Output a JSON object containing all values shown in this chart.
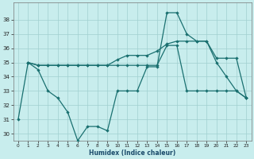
{
  "xlabel": "Humidex (Indice chaleur)",
  "bg_color": "#c8eded",
  "grid_color": "#a0d0d0",
  "line_color": "#1a7070",
  "x_all": [
    0,
    1,
    2,
    3,
    4,
    5,
    6,
    7,
    8,
    9,
    10,
    11,
    12,
    13,
    14,
    15,
    16,
    17,
    18,
    19,
    20,
    21,
    22,
    23
  ],
  "series1": [
    31,
    35,
    34.5,
    33,
    32.5,
    31.5,
    29.5,
    30.5,
    30.5,
    30.2,
    33,
    33,
    33,
    34.7,
    34.7,
    38.5,
    38.5,
    37,
    36.5,
    36.5,
    35,
    34,
    33,
    32.5
  ],
  "series2_x": [
    1,
    2,
    3,
    4,
    5,
    6,
    7,
    8,
    9,
    10,
    11,
    12,
    13,
    14,
    15,
    16,
    17,
    18,
    19,
    20,
    21,
    22,
    23
  ],
  "series2_y": [
    35,
    34.8,
    34.8,
    34.8,
    34.8,
    34.8,
    34.8,
    34.8,
    34.8,
    35.2,
    35.5,
    35.5,
    35.5,
    35.8,
    36.3,
    36.5,
    36.5,
    36.5,
    36.5,
    35.3,
    35.3,
    35.3,
    32.5
  ],
  "series3_x": [
    1,
    2,
    3,
    4,
    5,
    6,
    7,
    8,
    9,
    10,
    11,
    12,
    13,
    14,
    15,
    16,
    17,
    18,
    19,
    20,
    21,
    22,
    23
  ],
  "series3_y": [
    35,
    34.8,
    34.8,
    34.8,
    34.8,
    34.8,
    34.8,
    34.8,
    34.8,
    34.8,
    34.8,
    34.8,
    34.8,
    34.8,
    36.2,
    36.2,
    33,
    33,
    33,
    33,
    33,
    33,
    32.5
  ],
  "ylim_min": 29.5,
  "ylim_max": 39.2,
  "yticks": [
    30,
    31,
    32,
    33,
    34,
    35,
    36,
    37,
    38
  ],
  "xticks": [
    0,
    1,
    2,
    3,
    4,
    5,
    6,
    7,
    8,
    9,
    10,
    11,
    12,
    13,
    14,
    15,
    16,
    17,
    18,
    19,
    20,
    21,
    22,
    23
  ]
}
